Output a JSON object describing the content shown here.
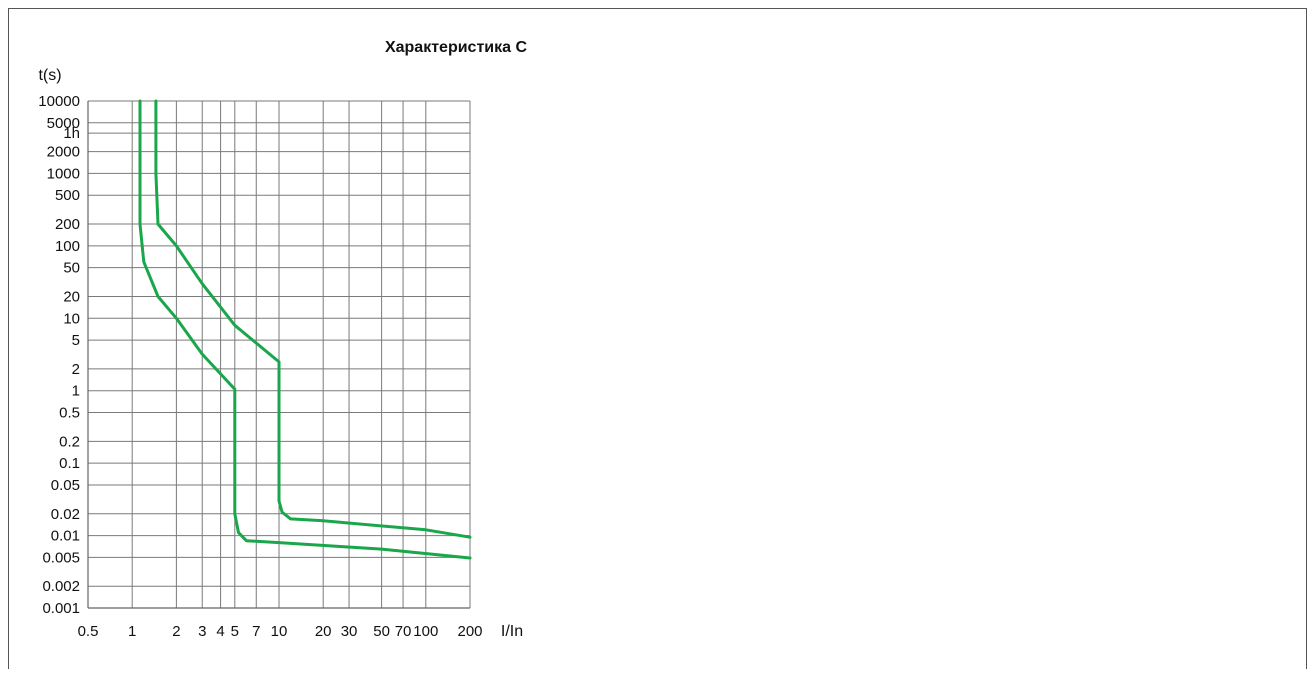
{
  "chart_data": {
    "type": "line",
    "title": "Характеристика С",
    "ylabel": "t(s)",
    "xlabel": "I/In",
    "x_scale": "log",
    "y_scale": "log",
    "grid": true,
    "xlim": [
      0.5,
      200
    ],
    "ylim": [
      0.001,
      10000
    ],
    "x_tick_labels": [
      {
        "label": "0.5",
        "value": 0.5
      },
      {
        "label": "1",
        "value": 1
      },
      {
        "label": "2",
        "value": 2
      },
      {
        "label": "3",
        "value": 3
      },
      {
        "label": "4",
        "value": 4
      },
      {
        "label": "5",
        "value": 5
      },
      {
        "label": "7",
        "value": 7
      },
      {
        "label": "10",
        "value": 10
      },
      {
        "label": "20",
        "value": 20
      },
      {
        "label": "30",
        "value": 30
      },
      {
        "label": "50",
        "value": 50
      },
      {
        "label": "70",
        "value": 70
      },
      {
        "label": "100",
        "value": 100
      },
      {
        "label": "200",
        "value": 200
      }
    ],
    "y_tick_labels": [
      {
        "label": "10000",
        "value": 10000
      },
      {
        "label": "5000",
        "value": 5000
      },
      {
        "label": "1h",
        "value": 3600
      },
      {
        "label": "2000",
        "value": 2000
      },
      {
        "label": "1000",
        "value": 1000
      },
      {
        "label": "500",
        "value": 500
      },
      {
        "label": "200",
        "value": 200
      },
      {
        "label": "100",
        "value": 100
      },
      {
        "label": "50",
        "value": 50
      },
      {
        "label": "20",
        "value": 20
      },
      {
        "label": "10",
        "value": 10
      },
      {
        "label": "5",
        "value": 5
      },
      {
        "label": "2",
        "value": 2
      },
      {
        "label": "1",
        "value": 1
      },
      {
        "label": "0.5",
        "value": 0.5
      },
      {
        "label": "0.2",
        "value": 0.2
      },
      {
        "label": "0.1",
        "value": 0.1
      },
      {
        "label": "0.05",
        "value": 0.05
      },
      {
        "label": "0.02",
        "value": 0.02
      },
      {
        "label": "0.01",
        "value": 0.01
      },
      {
        "label": "0.005",
        "value": 0.005
      },
      {
        "label": "0.002",
        "value": 0.002
      },
      {
        "label": "0.001",
        "value": 0.001
      }
    ],
    "x_gridlines": [
      1,
      2,
      3,
      4,
      5,
      7,
      10,
      20,
      30,
      50,
      70,
      100,
      200
    ],
    "y_gridlines": [
      10000,
      5000,
      3600,
      2000,
      1000,
      500,
      200,
      100,
      50,
      20,
      10,
      5,
      2,
      1,
      0.5,
      0.2,
      0.1,
      0.05,
      0.02,
      0.01,
      0.005,
      0.002,
      0.001
    ],
    "color": "#1aa64b",
    "series": [
      {
        "points": [
          [
            1.13,
            10000
          ],
          [
            1.13,
            1000
          ],
          [
            1.13,
            200
          ],
          [
            1.2,
            60
          ],
          [
            1.5,
            20
          ],
          [
            2,
            10
          ],
          [
            3,
            3.2
          ],
          [
            5,
            1.05
          ],
          [
            5,
            0.5
          ],
          [
            5,
            0.1
          ],
          [
            5,
            0.02
          ],
          [
            5.3,
            0.011
          ],
          [
            6,
            0.0085
          ],
          [
            10,
            0.008
          ],
          [
            50,
            0.0065
          ],
          [
            200,
            0.0049
          ]
        ]
      },
      {
        "points": [
          [
            1.45,
            10000
          ],
          [
            1.45,
            1000
          ],
          [
            1.5,
            200
          ],
          [
            2,
            100
          ],
          [
            3,
            30
          ],
          [
            5,
            8
          ],
          [
            10,
            2.5
          ],
          [
            10,
            1
          ],
          [
            10,
            0.1
          ],
          [
            10,
            0.03
          ],
          [
            10.5,
            0.021
          ],
          [
            12,
            0.017
          ],
          [
            20,
            0.016
          ],
          [
            100,
            0.012
          ],
          [
            200,
            0.0095
          ]
        ]
      }
    ]
  }
}
